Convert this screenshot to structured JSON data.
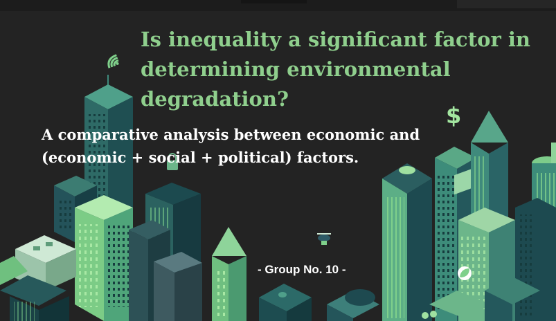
{
  "slide": {
    "title": "Is inequality a significant factor in determining environmental degradation?",
    "subtitle": "A comparative analysis between economic and (economic + social + political) factors.",
    "group_label": "- Group No. 10 -"
  },
  "colors": {
    "background": "#232323",
    "title": "#8fcf8d",
    "subtitle": "#ffffff",
    "building_dark": "#1f4f52",
    "building_mid": "#3f8a7c",
    "building_light": "#9fe0a0"
  },
  "icons": [
    "wifi-icon",
    "dollar-icon",
    "padlock-icon",
    "drone-icon",
    "leaf-icon"
  ]
}
